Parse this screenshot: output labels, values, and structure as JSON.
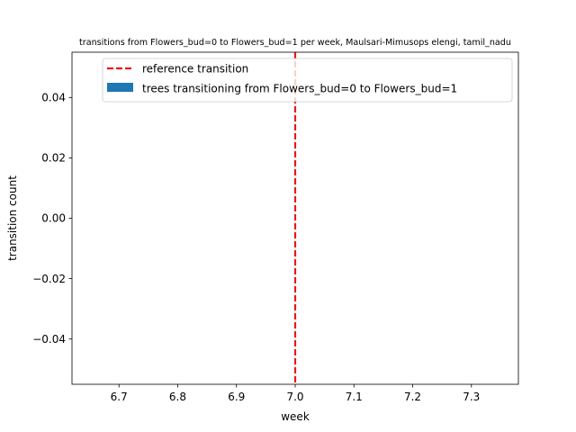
{
  "chart_data": {
    "type": "bar",
    "title": "transitions from Flowers_bud=0 to Flowers_bud=1 per week, Maulsari-Mimusops elengi, tamil_nadu",
    "xlabel": "week",
    "ylabel": "transition count",
    "xlim": [
      6.62,
      7.38
    ],
    "ylim": [
      -0.055,
      0.055
    ],
    "x_ticks": [
      6.7,
      6.8,
      6.9,
      7.0,
      7.1,
      7.2,
      7.3
    ],
    "x_tick_labels": [
      "6.7",
      "6.8",
      "6.9",
      "7.0",
      "7.1",
      "7.2",
      "7.3"
    ],
    "y_ticks": [
      0.04,
      0.02,
      0.0,
      -0.02,
      -0.04
    ],
    "y_tick_labels": [
      "0.04",
      "0.02",
      "0.00",
      "−0.02",
      "−0.04"
    ],
    "series": [
      {
        "name": "trees transitioning from Flowers_bud=0 to Flowers_bud=1",
        "x": [],
        "values": [],
        "color": "#1f77b4"
      }
    ],
    "reference_line": {
      "name": "reference transition",
      "x": 7.0,
      "color": "#e41a1c",
      "style": "dashed"
    },
    "legend": {
      "placement": "top",
      "entries": [
        {
          "label": "reference transition",
          "kind": "dashed-line",
          "color": "#e41a1c"
        },
        {
          "label": "trees transitioning from Flowers_bud=0 to Flowers_bud=1",
          "kind": "patch",
          "color": "#1f77b4"
        }
      ]
    },
    "grid": false
  }
}
